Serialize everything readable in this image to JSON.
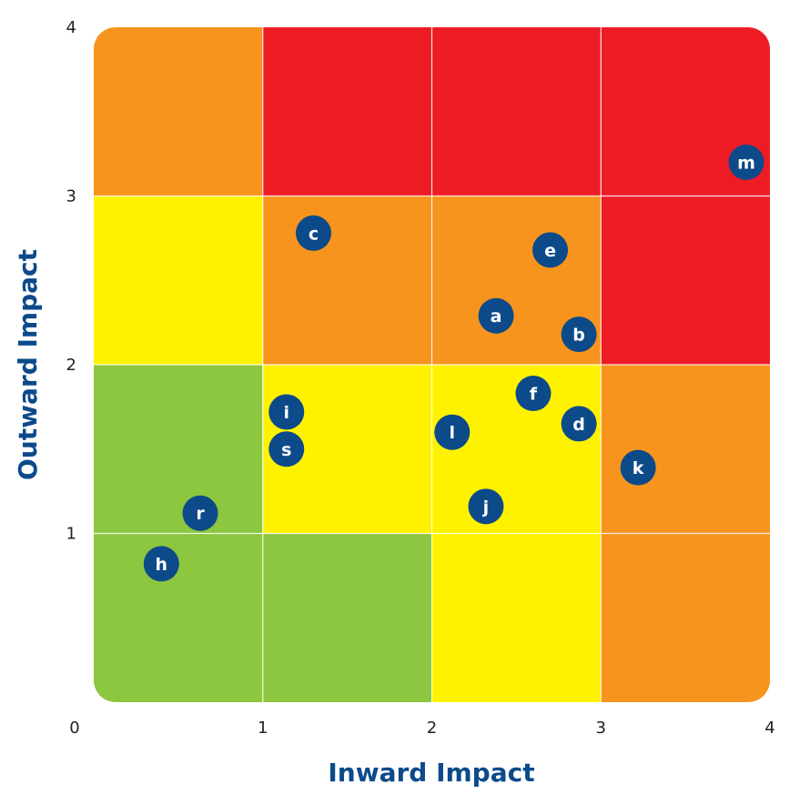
{
  "chart_data": {
    "type": "scatter",
    "title": "",
    "xlabel": "Inward Impact",
    "ylabel": "Outward Impact",
    "xlim": [
      0,
      4
    ],
    "ylim": [
      0,
      4
    ],
    "x_ticks": [
      "0",
      "1",
      "2",
      "3",
      "4"
    ],
    "y_ticks": [
      "1",
      "2",
      "3",
      "4"
    ],
    "grid": true,
    "zones": {
      "colors": {
        "green": "#8dc63f",
        "yellow": "#fff200",
        "orange": "#f7941d",
        "red": "#ed1c24"
      },
      "rows_top_to_bottom": [
        [
          "orange",
          "red",
          "red",
          "red"
        ],
        [
          "yellow",
          "orange",
          "orange",
          "red"
        ],
        [
          "green",
          "yellow",
          "yellow",
          "orange"
        ],
        [
          "green",
          "green",
          "yellow",
          "orange"
        ]
      ]
    },
    "marker_color": "#0c4a8a",
    "points": [
      {
        "label": "m",
        "x": 3.86,
        "y": 3.2
      },
      {
        "label": "c",
        "x": 1.3,
        "y": 2.78
      },
      {
        "label": "e",
        "x": 2.7,
        "y": 2.68
      },
      {
        "label": "a",
        "x": 2.38,
        "y": 2.29
      },
      {
        "label": "b",
        "x": 2.87,
        "y": 2.18
      },
      {
        "label": "f",
        "x": 2.6,
        "y": 1.83
      },
      {
        "label": "i",
        "x": 1.14,
        "y": 1.72
      },
      {
        "label": "d",
        "x": 2.87,
        "y": 1.65
      },
      {
        "label": "l",
        "x": 2.12,
        "y": 1.6
      },
      {
        "label": "s",
        "x": 1.14,
        "y": 1.5
      },
      {
        "label": "k",
        "x": 3.22,
        "y": 1.39
      },
      {
        "label": "j",
        "x": 2.32,
        "y": 1.16
      },
      {
        "label": "r",
        "x": 0.63,
        "y": 1.12
      },
      {
        "label": "h",
        "x": 0.4,
        "y": 0.82
      }
    ]
  }
}
